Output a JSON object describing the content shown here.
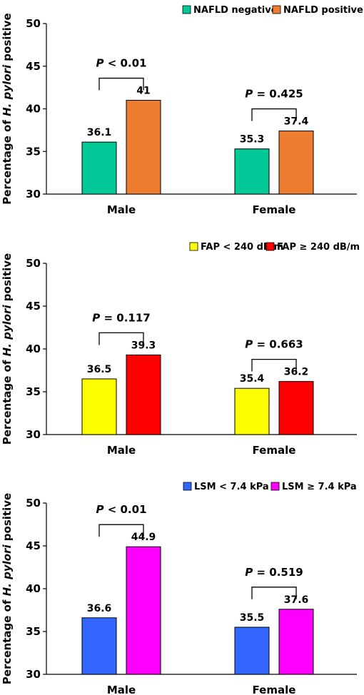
{
  "chart_data": [
    {
      "type": "bar",
      "ylabel_parts": [
        "Percentage of ",
        "H. pylori",
        " positive"
      ],
      "ylim": [
        30,
        50
      ],
      "yticks": [
        30,
        35,
        40,
        45,
        50
      ],
      "categories": [
        "Male",
        "Female"
      ],
      "series": [
        {
          "name": "NAFLD negative",
          "color": "#00c896",
          "values": [
            36.1,
            35.3
          ],
          "labels": [
            "36.1",
            "35.3"
          ]
        },
        {
          "name": "NAFLD positive",
          "color": "#ed7d31",
          "values": [
            41,
            37.4
          ],
          "labels": [
            "41",
            "37.4"
          ]
        }
      ],
      "pvalues": [
        {
          "p": "P",
          "rel": "<",
          "value": "0.01"
        },
        {
          "p": "P",
          "rel": "=",
          "value": "0.425"
        }
      ],
      "legend": "top-right",
      "grid": false
    },
    {
      "type": "bar",
      "ylabel_parts": [
        "Percentage of ",
        "H. pylori",
        " positive"
      ],
      "ylim": [
        30,
        50
      ],
      "yticks": [
        30,
        35,
        40,
        45,
        50
      ],
      "categories": [
        "Male",
        "Female"
      ],
      "series": [
        {
          "name": "FAP  < 240 dB/m",
          "color": "#ffff00",
          "values": [
            36.5,
            35.4
          ],
          "labels": [
            "36.5",
            "35.4"
          ]
        },
        {
          "name": "FAP ≥ 240 dB/m",
          "color": "#ff0000",
          "values": [
            39.3,
            36.2
          ],
          "labels": [
            "39.3",
            "36.2"
          ]
        }
      ],
      "pvalues": [
        {
          "p": "P",
          "rel": "=",
          "value": "0.117"
        },
        {
          "p": "P",
          "rel": "=",
          "value": "0.663"
        }
      ],
      "legend": "top-right",
      "grid": false
    },
    {
      "type": "bar",
      "ylabel_parts": [
        "Percentage of ",
        "H. pylori",
        " positive"
      ],
      "ylim": [
        30,
        50
      ],
      "yticks": [
        30,
        35,
        40,
        45,
        50
      ],
      "categories": [
        "Male",
        "Female"
      ],
      "series": [
        {
          "name": "LSM < 7.4 kPa",
          "color": "#3366ff",
          "values": [
            36.6,
            35.5
          ],
          "labels": [
            "36.6",
            "35.5"
          ]
        },
        {
          "name": "LSM ≥ 7.4 kPa",
          "color": "#ff00ff",
          "values": [
            44.9,
            37.6
          ],
          "labels": [
            "44.9",
            "37.6"
          ]
        }
      ],
      "pvalues": [
        {
          "p": "P",
          "rel": "<",
          "value": "0.01"
        },
        {
          "p": "P",
          "rel": "=",
          "value": "0.519"
        }
      ],
      "legend": "top-right",
      "grid": false
    }
  ]
}
